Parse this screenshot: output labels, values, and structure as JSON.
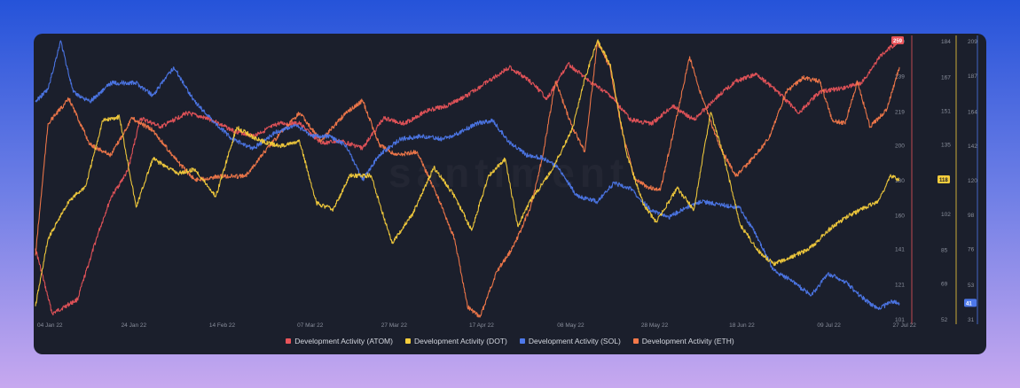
{
  "watermark": "santiment",
  "chart_data": {
    "type": "line",
    "title": "",
    "xlabel": "",
    "ylabel": "",
    "grid": false,
    "legend_position": "bottom",
    "x_ticks": [
      "04 Jan 22",
      "24 Jan 22",
      "14 Feb 22",
      "07 Mar 22",
      "27 Mar 22",
      "17 Apr 22",
      "08 May 22",
      "28 May 22",
      "18 Jun 22",
      "09 Jul 22",
      "27 Jul 22"
    ],
    "x_tick_positions": [
      0,
      20,
      41,
      62,
      82,
      103,
      124,
      144,
      165,
      186,
      204
    ],
    "x_days": 206,
    "axes": [
      {
        "id": "atom",
        "color": "#e8545a",
        "range": [
          101,
          259
        ],
        "ticks": [
          101,
          121,
          141,
          160,
          180,
          200,
          219,
          239,
          259
        ],
        "current": 259
      },
      {
        "id": "dot",
        "color": "#f5cd3c",
        "range": [
          52,
          184
        ],
        "ticks": [
          52,
          69,
          85,
          102,
          118,
          135,
          151,
          167,
          184
        ],
        "current": 118
      },
      {
        "id": "sol",
        "color": "#4d78ea",
        "range": [
          31,
          209
        ],
        "ticks": [
          31,
          53,
          76,
          98,
          120,
          142,
          164,
          187,
          209
        ],
        "current": 41
      }
    ],
    "series": [
      {
        "name": "Development Activity (ATOM)",
        "color": "#e8545a",
        "axis": "atom",
        "values": [
          [
            0,
            141
          ],
          [
            4,
            104
          ],
          [
            10,
            112
          ],
          [
            15,
            150
          ],
          [
            18,
            170
          ],
          [
            22,
            185
          ],
          [
            25,
            215
          ],
          [
            30,
            210
          ],
          [
            36,
            218
          ],
          [
            42,
            214
          ],
          [
            47,
            208
          ],
          [
            52,
            205
          ],
          [
            58,
            212
          ],
          [
            63,
            212
          ],
          [
            68,
            201
          ],
          [
            73,
            202
          ],
          [
            78,
            198
          ],
          [
            83,
            215
          ],
          [
            88,
            212
          ],
          [
            93,
            219
          ],
          [
            98,
            222
          ],
          [
            103,
            228
          ],
          [
            108,
            236
          ],
          [
            113,
            244
          ],
          [
            118,
            236
          ],
          [
            122,
            226
          ],
          [
            127,
            246
          ],
          [
            132,
            236
          ],
          [
            137,
            228
          ],
          [
            142,
            214
          ],
          [
            147,
            212
          ],
          [
            152,
            222
          ],
          [
            157,
            214
          ],
          [
            162,
            226
          ],
          [
            167,
            236
          ],
          [
            172,
            240
          ],
          [
            177,
            230
          ],
          [
            182,
            218
          ],
          [
            187,
            230
          ],
          [
            192,
            232
          ],
          [
            197,
            235
          ],
          [
            202,
            252
          ],
          [
            206,
            259
          ]
        ]
      },
      {
        "name": "Development Activity (DOT)",
        "color": "#f5cd3c",
        "axis": "dot",
        "values": [
          [
            0,
            58
          ],
          [
            3,
            90
          ],
          [
            8,
            108
          ],
          [
            12,
            115
          ],
          [
            16,
            146
          ],
          [
            20,
            148
          ],
          [
            24,
            105
          ],
          [
            28,
            128
          ],
          [
            34,
            121
          ],
          [
            38,
            123
          ],
          [
            43,
            110
          ],
          [
            48,
            143
          ],
          [
            53,
            137
          ],
          [
            58,
            134
          ],
          [
            63,
            136
          ],
          [
            67,
            107
          ],
          [
            71,
            104
          ],
          [
            75,
            120
          ],
          [
            80,
            120
          ],
          [
            85,
            88
          ],
          [
            90,
            102
          ],
          [
            95,
            124
          ],
          [
            100,
            110
          ],
          [
            104,
            94
          ],
          [
            108,
            120
          ],
          [
            112,
            128
          ],
          [
            115,
            96
          ],
          [
            118,
            108
          ],
          [
            123,
            122
          ],
          [
            128,
            142
          ],
          [
            131,
            166
          ],
          [
            134,
            184
          ],
          [
            137,
            173
          ],
          [
            141,
            130
          ],
          [
            145,
            106
          ],
          [
            148,
            98
          ],
          [
            153,
            114
          ],
          [
            157,
            104
          ],
          [
            161,
            150
          ],
          [
            164,
            130
          ],
          [
            168,
            97
          ],
          [
            172,
            85
          ],
          [
            176,
            78
          ],
          [
            181,
            82
          ],
          [
            185,
            86
          ],
          [
            189,
            94
          ],
          [
            193,
            100
          ],
          [
            197,
            104
          ],
          [
            201,
            108
          ],
          [
            204,
            120
          ],
          [
            206,
            118
          ]
        ]
      },
      {
        "name": "Development Activity (SOL)",
        "color": "#4d78ea",
        "axis": "sol",
        "values": [
          [
            0,
            170
          ],
          [
            3,
            178
          ],
          [
            6,
            209
          ],
          [
            9,
            176
          ],
          [
            13,
            170
          ],
          [
            18,
            182
          ],
          [
            24,
            182
          ],
          [
            28,
            174
          ],
          [
            33,
            192
          ],
          [
            38,
            170
          ],
          [
            43,
            156
          ],
          [
            47,
            146
          ],
          [
            52,
            140
          ],
          [
            57,
            150
          ],
          [
            62,
            155
          ],
          [
            66,
            148
          ],
          [
            70,
            148
          ],
          [
            74,
            142
          ],
          [
            78,
            120
          ],
          [
            82,
            136
          ],
          [
            87,
            146
          ],
          [
            92,
            148
          ],
          [
            97,
            146
          ],
          [
            101,
            150
          ],
          [
            105,
            156
          ],
          [
            109,
            158
          ],
          [
            113,
            144
          ],
          [
            117,
            136
          ],
          [
            121,
            134
          ],
          [
            125,
            127
          ],
          [
            129,
            110
          ],
          [
            134,
            106
          ],
          [
            138,
            118
          ],
          [
            142,
            114
          ],
          [
            147,
            100
          ],
          [
            151,
            96
          ],
          [
            155,
            102
          ],
          [
            159,
            106
          ],
          [
            164,
            104
          ],
          [
            168,
            102
          ],
          [
            172,
            84
          ],
          [
            176,
            62
          ],
          [
            180,
            56
          ],
          [
            185,
            46
          ],
          [
            189,
            60
          ],
          [
            193,
            55
          ],
          [
            197,
            45
          ],
          [
            201,
            37
          ],
          [
            204,
            42
          ],
          [
            206,
            41
          ]
        ]
      },
      {
        "name": "Development Activity (ETH)",
        "color": "#f4794a",
        "axis": "atom",
        "values": [
          [
            0,
            137
          ],
          [
            3,
            212
          ],
          [
            8,
            226
          ],
          [
            13,
            200
          ],
          [
            18,
            194
          ],
          [
            23,
            215
          ],
          [
            28,
            208
          ],
          [
            34,
            190
          ],
          [
            38,
            180
          ],
          [
            44,
            182
          ],
          [
            50,
            182
          ],
          [
            55,
            197
          ],
          [
            59,
            208
          ],
          [
            63,
            218
          ],
          [
            68,
            202
          ],
          [
            74,
            218
          ],
          [
            78,
            225
          ],
          [
            82,
            200
          ],
          [
            86,
            194
          ],
          [
            91,
            196
          ],
          [
            96,
            170
          ],
          [
            100,
            146
          ],
          [
            103,
            108
          ],
          [
            106,
            102
          ],
          [
            110,
            128
          ],
          [
            114,
            142
          ],
          [
            118,
            164
          ],
          [
            121,
            194
          ],
          [
            124,
            236
          ],
          [
            128,
            210
          ],
          [
            131,
            196
          ],
          [
            134,
            258
          ],
          [
            137,
            244
          ],
          [
            140,
            206
          ],
          [
            143,
            180
          ],
          [
            146,
            176
          ],
          [
            149,
            174
          ],
          [
            152,
            206
          ],
          [
            156,
            250
          ],
          [
            159,
            226
          ],
          [
            163,
            200
          ],
          [
            167,
            182
          ],
          [
            171,
            192
          ],
          [
            175,
            204
          ],
          [
            179,
            230
          ],
          [
            183,
            238
          ],
          [
            187,
            236
          ],
          [
            190,
            214
          ],
          [
            193,
            212
          ],
          [
            196,
            236
          ],
          [
            199,
            210
          ],
          [
            203,
            220
          ],
          [
            206,
            244
          ]
        ]
      }
    ]
  }
}
